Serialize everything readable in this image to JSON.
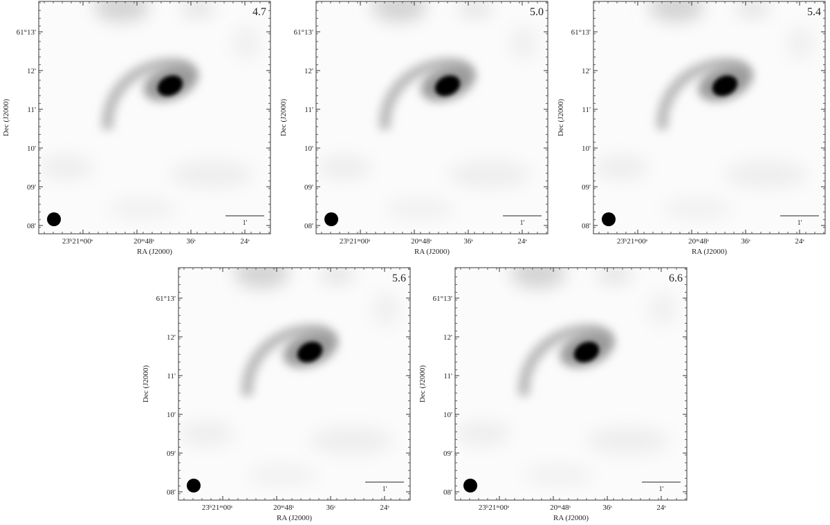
{
  "figure": {
    "x_label": "RA (J2000)",
    "y_label": "Dec (J2000)",
    "x_tick_labels": [
      "23ʰ21ᵐ00ˢ",
      "20ᵐ48ˢ",
      "36ˢ",
      "24ˢ"
    ],
    "y_tick_labels": [
      "61°13'",
      "12'",
      "11'",
      "10'",
      "09'",
      "08'"
    ],
    "scale_bar_label": "1'",
    "panels": [
      {
        "label": "4.7"
      },
      {
        "label": "5.0"
      },
      {
        "label": "5.4"
      },
      {
        "label": "5.6"
      },
      {
        "label": "6.6"
      }
    ]
  }
}
